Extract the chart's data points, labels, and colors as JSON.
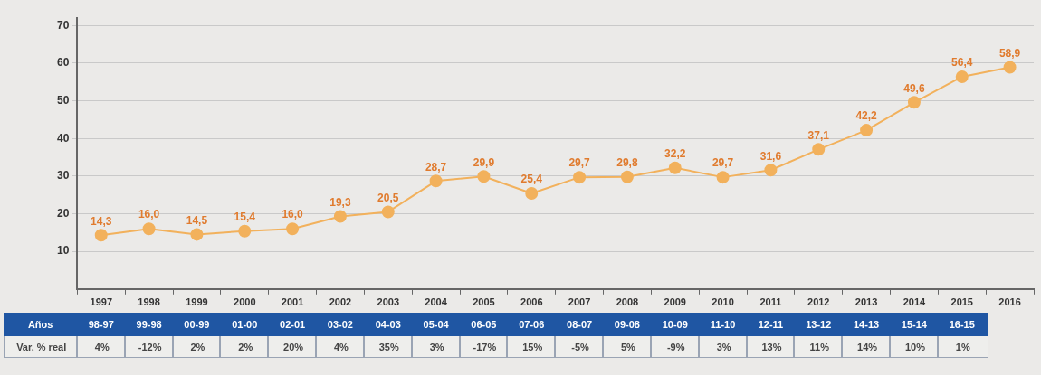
{
  "chart_data": {
    "type": "line",
    "categories": [
      "1997",
      "1998",
      "1999",
      "2000",
      "2001",
      "2002",
      "2003",
      "2004",
      "2005",
      "2006",
      "2007",
      "2008",
      "2009",
      "2010",
      "2011",
      "2012",
      "2013",
      "2014",
      "2015",
      "2016"
    ],
    "series": [
      {
        "color": "#f2b15c",
        "values": [
          14.3,
          16.0,
          14.5,
          15.4,
          16.0,
          19.3,
          20.5,
          28.7,
          29.9,
          25.4,
          29.7,
          29.8,
          32.2,
          29.7,
          31.6,
          37.1,
          42.2,
          49.6,
          56.4,
          58.9
        ],
        "value_labels": [
          "14,3",
          "16,0",
          "14,5",
          "15,4",
          "16,0",
          "19,3",
          "20,5",
          "28,7",
          "29,9",
          "25,4",
          "29,7",
          "29,8",
          "32,2",
          "29,7",
          "31,6",
          "37,1",
          "42,2",
          "49,6",
          "56,4",
          "58,9"
        ]
      }
    ],
    "ylim": [
      0,
      72
    ],
    "yticks": [
      10,
      20,
      30,
      40,
      50,
      60,
      70
    ],
    "grid": "y",
    "marker": "circle",
    "line_style": "solid",
    "legend": false,
    "annotations": [
      "Años",
      "98-97",
      "99-98",
      "00-99",
      "01-00",
      "02-01",
      "03-02",
      "04-03",
      "05-04",
      "06-05",
      "07-06",
      "08-07",
      "09-08",
      "10-09",
      "11-10",
      "12-11",
      "13-12",
      "14-13",
      "15-14",
      "16-15",
      "Var. % real",
      "4%",
      "-12%",
      "2%",
      "2%",
      "20%",
      "4%",
      "35%",
      "3%",
      "-17%",
      "15%",
      "-5%",
      "5%",
      "-9%",
      "3%",
      "13%",
      "11%",
      "14%",
      "10%",
      "1%"
    ]
  }
}
